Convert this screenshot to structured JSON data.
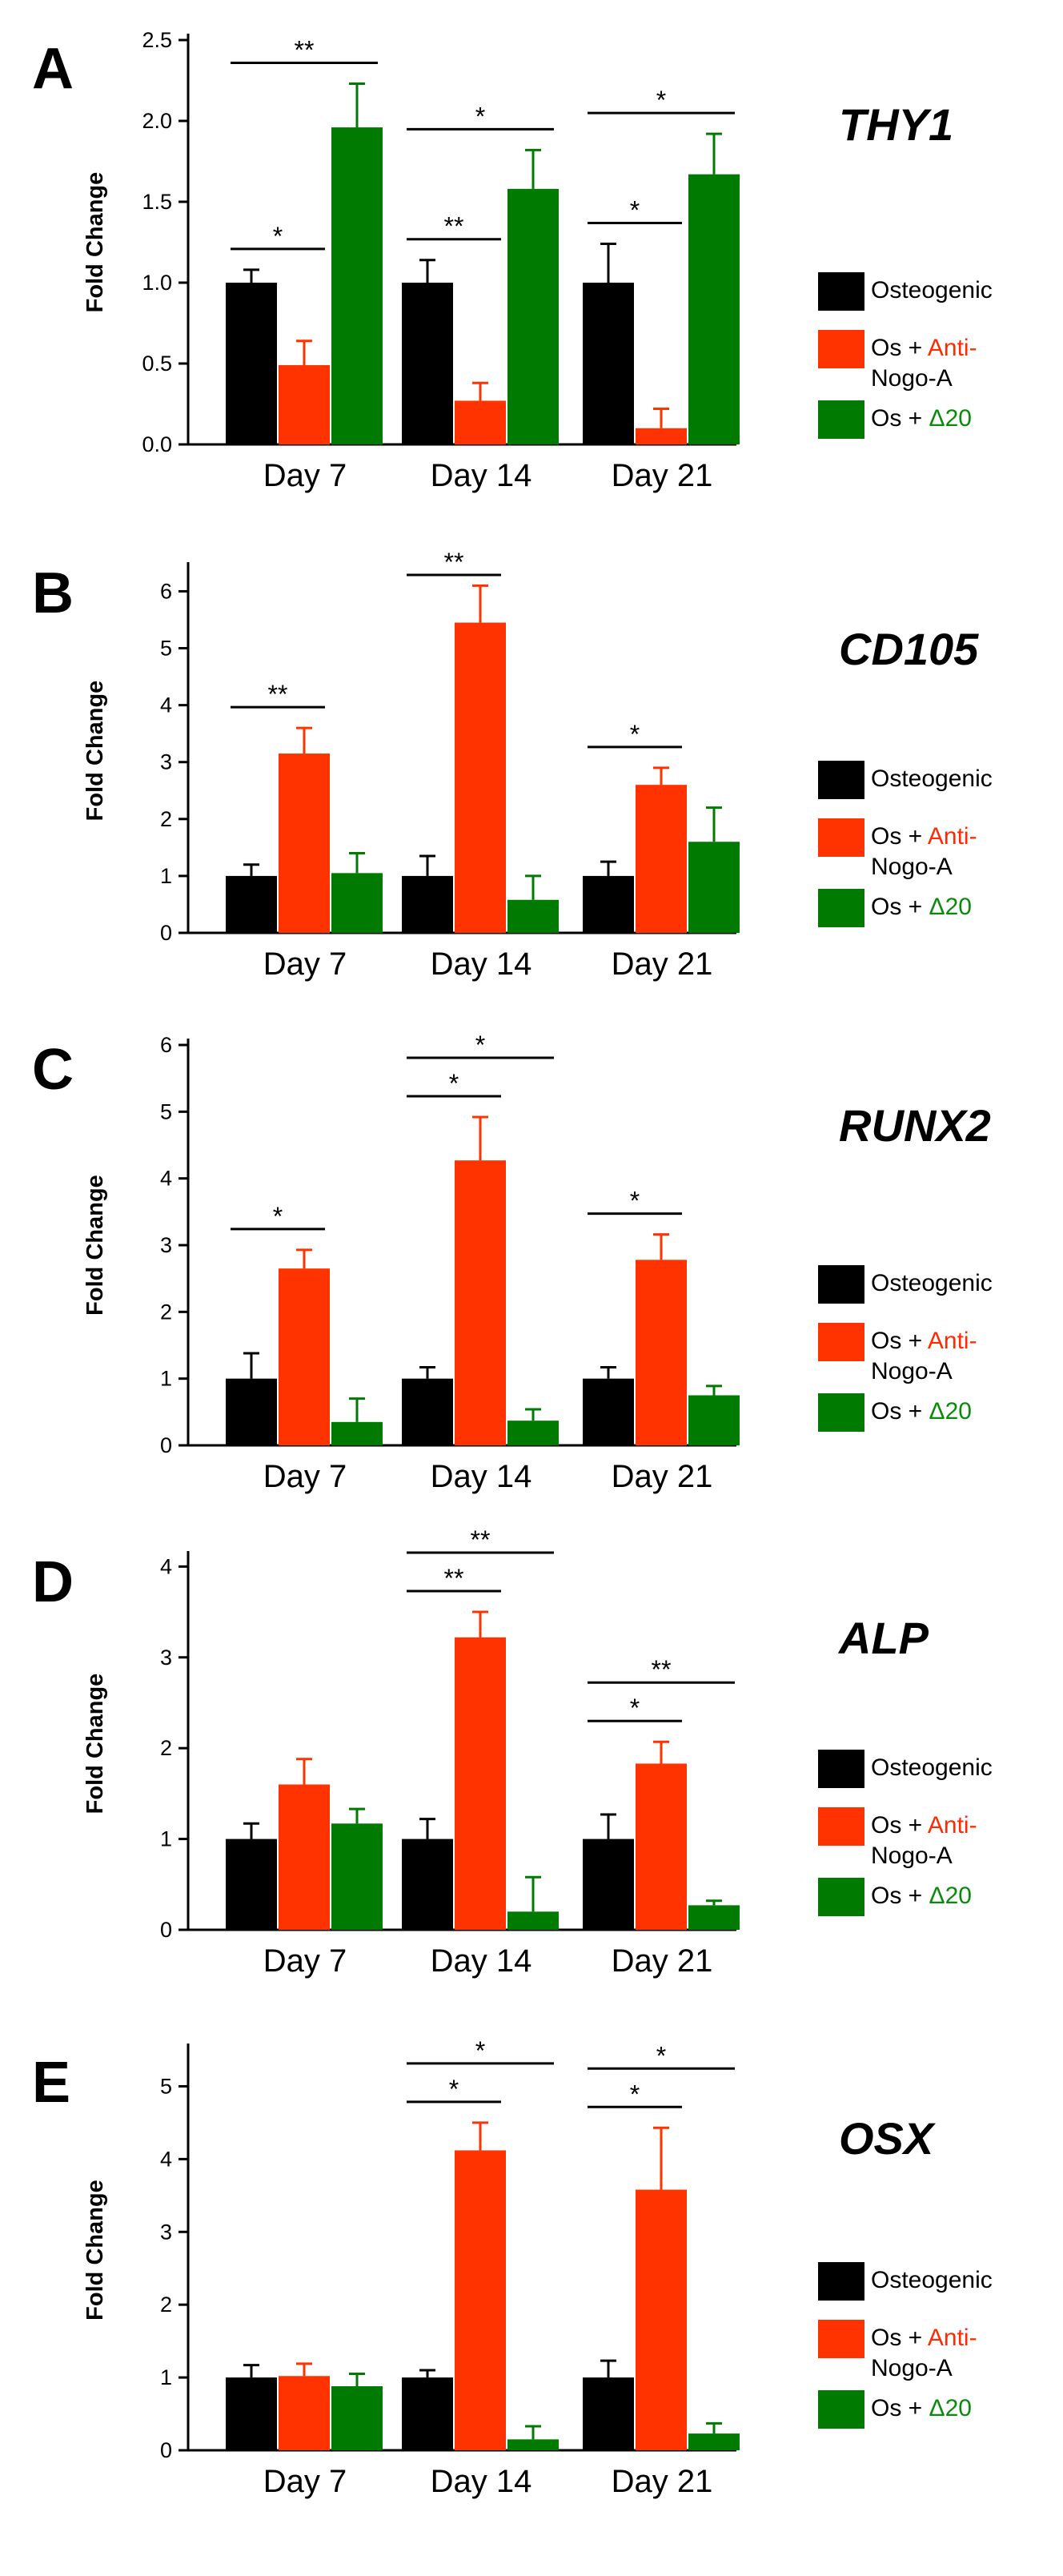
{
  "figure": {
    "series_colors": [
      "#000000",
      "#ff3300",
      "#007a00"
    ],
    "legend": {
      "items": [
        {
          "parts": [
            {
              "text": "Osteogenic",
              "color": "#000000"
            }
          ]
        },
        {
          "parts": [
            {
              "text": "Os + ",
              "color": "#000000"
            },
            {
              "text": "Anti-",
              "color": "#ff2a00"
            }
          ],
          "line2": {
            "text": "Nogo-A",
            "color": "#ff2a00"
          }
        },
        {
          "parts": [
            {
              "text": "Os + ",
              "color": "#000000"
            },
            {
              "text": "Δ20",
              "color": "#0a8a0a"
            }
          ]
        }
      ]
    }
  },
  "chart_data": [
    {
      "type": "bar",
      "panel": "A",
      "title": "THY1",
      "ylabel": "Fold Change",
      "categories": [
        "Day 7",
        "Day 14",
        "Day 21"
      ],
      "ylim": [
        0,
        2.5
      ],
      "yticks": [
        "0.0",
        "0.5",
        "1.0",
        "1.5",
        "2.0",
        "2.5"
      ],
      "series": [
        {
          "name": "Osteogenic",
          "values": [
            1.0,
            1.0,
            1.0
          ],
          "errors": [
            0.08,
            0.14,
            0.24
          ]
        },
        {
          "name": "Os + Anti-Nogo-A",
          "values": [
            0.49,
            0.27,
            0.1
          ],
          "errors": [
            0.15,
            0.11,
            0.12
          ]
        },
        {
          "name": "Os + Δ20",
          "values": [
            1.96,
            1.58,
            1.67
          ],
          "errors": [
            0.27,
            0.24,
            0.25
          ]
        }
      ],
      "significance": [
        {
          "label": "*",
          "group": 0,
          "from": 0,
          "to": 1,
          "level": 0
        },
        {
          "label": "**",
          "group": 0,
          "from": 0,
          "to": 2,
          "level": 1
        },
        {
          "label": "**",
          "group": 1,
          "from": 0,
          "to": 1,
          "level": 0
        },
        {
          "label": "*",
          "group": 1,
          "from": 0,
          "to": 2,
          "level": 1
        },
        {
          "label": "*",
          "group": 2,
          "from": 0,
          "to": 1,
          "level": 0
        },
        {
          "label": "*",
          "group": 2,
          "from": 0,
          "to": 2,
          "level": 1
        }
      ]
    },
    {
      "type": "bar",
      "panel": "B",
      "title": "CD105",
      "ylabel": "Fold Change",
      "categories": [
        "Day 7",
        "Day 14",
        "Day 21"
      ],
      "ylim": [
        0,
        6.4
      ],
      "yticks": [
        "0",
        "1",
        "2",
        "3",
        "4",
        "5",
        "6"
      ],
      "series": [
        {
          "name": "Osteogenic",
          "values": [
            1.0,
            1.0,
            1.0
          ],
          "errors": [
            0.2,
            0.35,
            0.25
          ]
        },
        {
          "name": "Os + Anti-Nogo-A",
          "values": [
            3.15,
            5.45,
            2.6
          ],
          "errors": [
            0.45,
            0.65,
            0.3
          ]
        },
        {
          "name": "Os + Δ20",
          "values": [
            1.05,
            0.58,
            1.6
          ],
          "errors": [
            0.35,
            0.42,
            0.6
          ]
        }
      ],
      "significance": [
        {
          "label": "**",
          "group": 0,
          "from": 0,
          "to": 1,
          "level": 0
        },
        {
          "label": "**",
          "group": 1,
          "from": 0,
          "to": 1,
          "level": 0
        },
        {
          "label": "*",
          "group": 2,
          "from": 0,
          "to": 1,
          "level": 0
        }
      ]
    },
    {
      "type": "bar",
      "panel": "C",
      "title": "RUNX2",
      "ylabel": "Fold Change",
      "categories": [
        "Day 7",
        "Day 14",
        "Day 21"
      ],
      "ylim": [
        0,
        6
      ],
      "yticks": [
        "0",
        "1",
        "2",
        "3",
        "4",
        "5",
        "6"
      ],
      "series": [
        {
          "name": "Osteogenic",
          "values": [
            1.0,
            1.0,
            1.0
          ],
          "errors": [
            0.38,
            0.17,
            0.17
          ]
        },
        {
          "name": "Os + Anti-Nogo-A",
          "values": [
            2.65,
            4.27,
            2.78
          ],
          "errors": [
            0.28,
            0.65,
            0.38
          ]
        },
        {
          "name": "Os + Δ20",
          "values": [
            0.35,
            0.37,
            0.75
          ],
          "errors": [
            0.35,
            0.17,
            0.14
          ]
        }
      ],
      "significance": [
        {
          "label": "*",
          "group": 0,
          "from": 0,
          "to": 1,
          "level": 0
        },
        {
          "label": "*",
          "group": 1,
          "from": 0,
          "to": 1,
          "level": 0
        },
        {
          "label": "*",
          "group": 1,
          "from": 0,
          "to": 2,
          "level": 1
        },
        {
          "label": "*",
          "group": 2,
          "from": 0,
          "to": 1,
          "level": 0
        }
      ]
    },
    {
      "type": "bar",
      "panel": "D",
      "title": "ALP",
      "ylabel": "Fold Change",
      "categories": [
        "Day 7",
        "Day 14",
        "Day 21"
      ],
      "ylim": [
        0,
        4.1
      ],
      "yticks": [
        "0",
        "1",
        "2",
        "3",
        "4"
      ],
      "series": [
        {
          "name": "Osteogenic",
          "values": [
            1.0,
            1.0,
            1.0
          ],
          "errors": [
            0.17,
            0.22,
            0.27
          ]
        },
        {
          "name": "Os + Anti-Nogo-A",
          "values": [
            1.6,
            3.22,
            1.83
          ],
          "errors": [
            0.28,
            0.28,
            0.24
          ]
        },
        {
          "name": "Os + Δ20",
          "values": [
            1.17,
            0.2,
            0.27
          ],
          "errors": [
            0.16,
            0.38,
            0.05
          ]
        }
      ],
      "significance": [
        {
          "label": "**",
          "group": 1,
          "from": 0,
          "to": 1,
          "level": 0
        },
        {
          "label": "**",
          "group": 1,
          "from": 0,
          "to": 2,
          "level": 1
        },
        {
          "label": "*",
          "group": 2,
          "from": 0,
          "to": 1,
          "level": 0
        },
        {
          "label": "**",
          "group": 2,
          "from": 0,
          "to": 2,
          "level": 1
        }
      ]
    },
    {
      "type": "bar",
      "panel": "E",
      "title": "OSX",
      "ylabel": "Fold Change",
      "categories": [
        "Day 7",
        "Day 14",
        "Day 21"
      ],
      "ylim": [
        0,
        5.5
      ],
      "yticks": [
        "0",
        "1",
        "2",
        "3",
        "4",
        "5"
      ],
      "series": [
        {
          "name": "Osteogenic",
          "values": [
            1.0,
            1.0,
            1.0
          ],
          "errors": [
            0.17,
            0.1,
            0.23
          ]
        },
        {
          "name": "Os + Anti-Nogo-A",
          "values": [
            1.02,
            4.12,
            3.58
          ],
          "errors": [
            0.17,
            0.38,
            0.85
          ]
        },
        {
          "name": "Os + Δ20",
          "values": [
            0.88,
            0.15,
            0.23
          ],
          "errors": [
            0.17,
            0.18,
            0.14
          ]
        }
      ],
      "significance": [
        {
          "label": "*",
          "group": 1,
          "from": 0,
          "to": 1,
          "level": 0
        },
        {
          "label": "*",
          "group": 1,
          "from": 0,
          "to": 2,
          "level": 1
        },
        {
          "label": "*",
          "group": 2,
          "from": 0,
          "to": 1,
          "level": 0
        },
        {
          "label": "*",
          "group": 2,
          "from": 0,
          "to": 2,
          "level": 1
        }
      ]
    }
  ]
}
